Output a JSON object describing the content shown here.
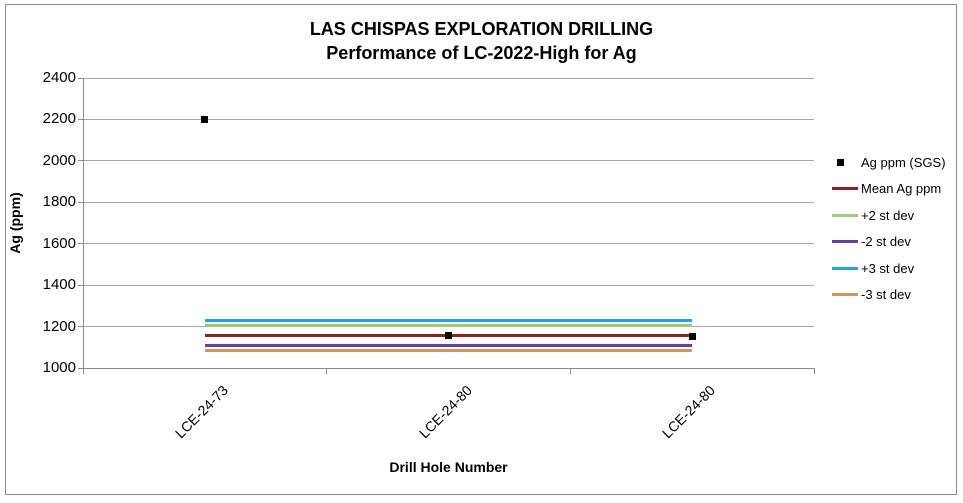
{
  "chart_data": {
    "type": "line",
    "title": "LAS CHISPAS EXPLORATION DRILLING",
    "subtitle": "Performance of LC-2022-High for Ag",
    "xlabel": "Drill Hole Number",
    "ylabel": "Ag (ppm)",
    "categories": [
      "LCE-24-73",
      "LCE-24-80",
      "LCE-24-80"
    ],
    "series": [
      {
        "name": "Ag ppm (SGS)",
        "style": "scatter",
        "marker": "square",
        "color": "#000000",
        "values": [
          2200,
          1157,
          1150
        ]
      },
      {
        "name": "Mean Ag ppm",
        "style": "line",
        "color": "#8B2226",
        "values": [
          1157,
          1157,
          1157
        ]
      },
      {
        "name": "+2 st dev",
        "style": "line",
        "color": "#A0C878",
        "values": [
          1206,
          1206,
          1206
        ]
      },
      {
        "name": "-2 st dev",
        "style": "line",
        "color": "#6A3D96",
        "values": [
          1108,
          1108,
          1108
        ]
      },
      {
        "name": "+3 st dev",
        "style": "line",
        "color": "#1FA6DA",
        "values": [
          1231,
          1231,
          1231
        ]
      },
      {
        "name": "-3 st dev",
        "style": "line",
        "color": "#D2965C",
        "values": [
          1083,
          1083,
          1083
        ]
      }
    ],
    "ylim": [
      1000,
      2400
    ],
    "yticks": [
      1000,
      1200,
      1400,
      1600,
      1800,
      2000,
      2200,
      2400
    ],
    "grid": true,
    "legend_position": "right",
    "x_tick_label_rotation": -45
  },
  "style": {
    "gridline_color": "#A6A6A6",
    "axis_color": "#8C8C8C",
    "border_color": "#8C8C8C",
    "text_color": "#000000",
    "background": "#FFFFFF"
  }
}
